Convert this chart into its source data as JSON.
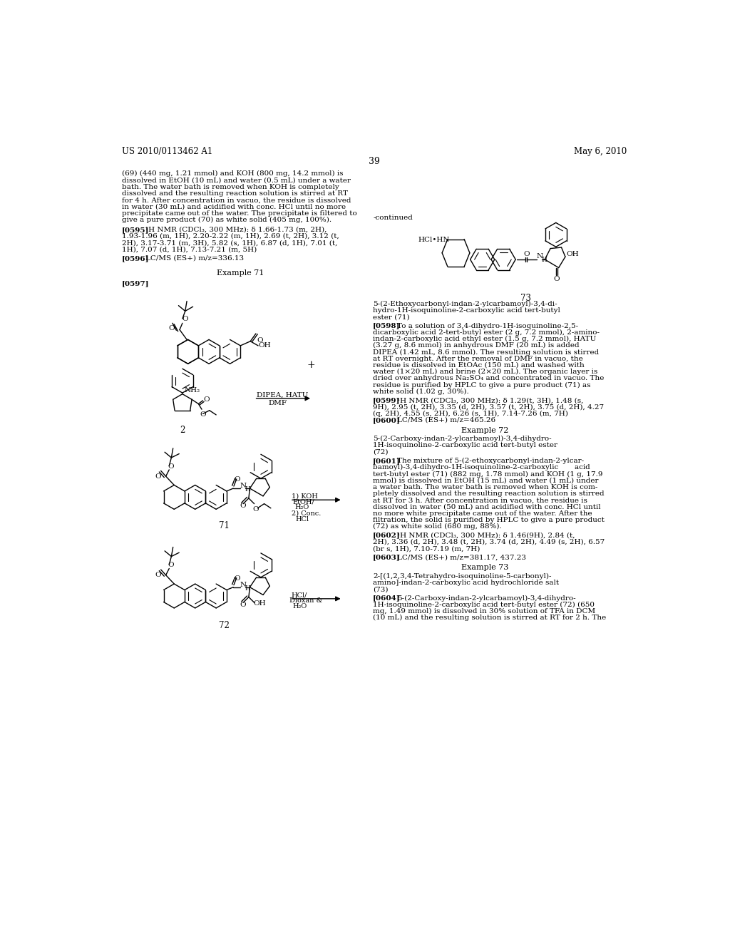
{
  "background_color": "#ffffff",
  "header_left": "US 2010/0113462 A1",
  "header_right": "May 6, 2010",
  "page_number": "39"
}
